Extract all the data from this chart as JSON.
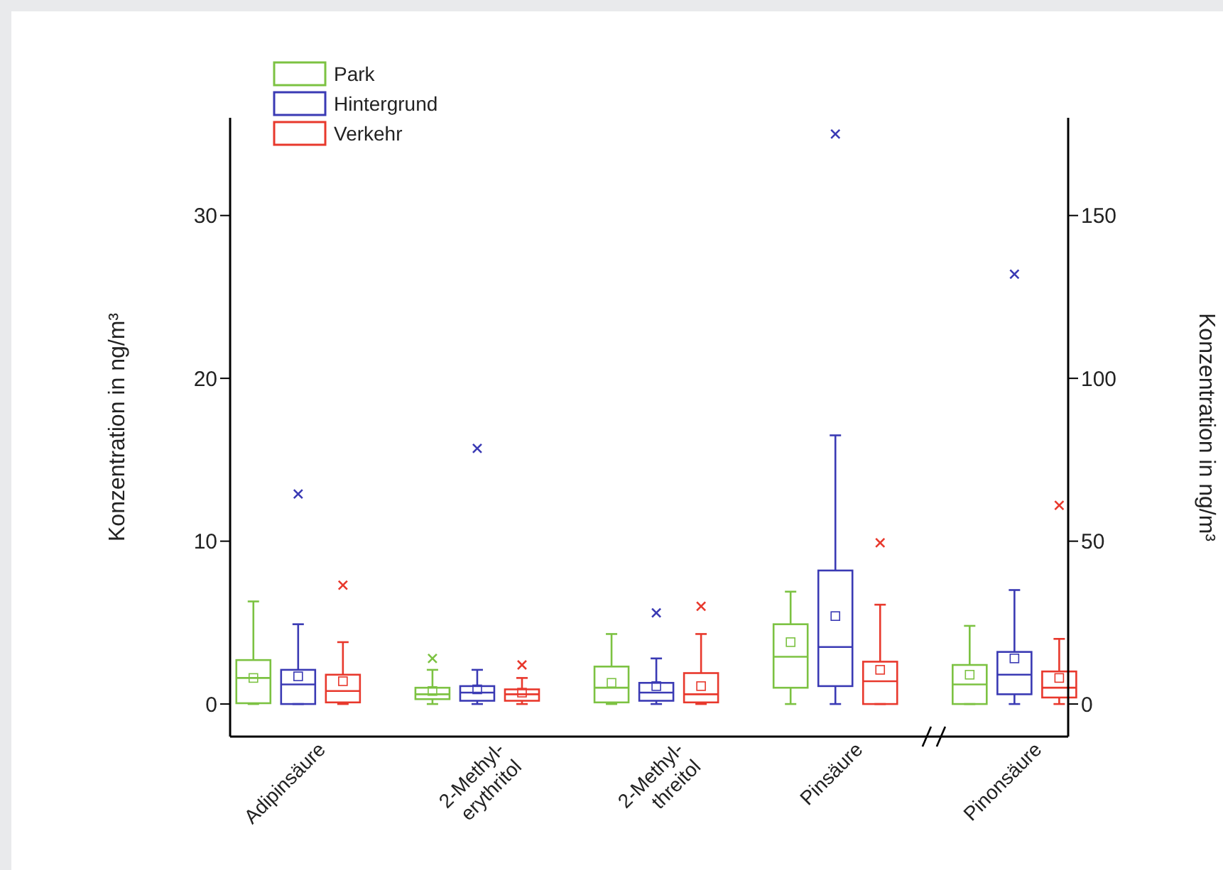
{
  "chart_data": {
    "type": "box",
    "categories": [
      "Adipinsäure",
      "2-Methyl-erythritol",
      "2-Methyl-threitol",
      "Pinsäure",
      "Pinonsäure"
    ],
    "ylabel": "Konzentration in ng/m³",
    "y2label": "Konzentration in ng/m³",
    "ylim": [
      -2,
      36
    ],
    "yticks": [
      0,
      10,
      20,
      30
    ],
    "y2lim": [
      -10,
      180
    ],
    "y2ticks": [
      0,
      50,
      100,
      150
    ],
    "legend": "top left",
    "series": [
      {
        "name": "Park",
        "color": "#7cc242",
        "boxes": [
          {
            "low": 0,
            "q1": 0.05,
            "median": 1.6,
            "q3": 2.7,
            "high": 6.3,
            "mean": 1.6
          },
          {
            "low": 0,
            "q1": 0.3,
            "median": 0.6,
            "q3": 1.0,
            "high": 2.1,
            "mean": 0.8,
            "outliers": [
              2.8
            ]
          },
          {
            "low": 0,
            "q1": 0.1,
            "median": 1.0,
            "q3": 2.3,
            "high": 4.3,
            "mean": 1.3
          },
          {
            "low": 0,
            "q1": 1.0,
            "median": 2.9,
            "q3": 4.9,
            "high": 6.9,
            "mean": 3.8
          },
          null
        ]
      },
      {
        "name": "Hintergrund",
        "color": "#3a3ab4",
        "boxes": [
          {
            "low": 0,
            "q1": 0,
            "median": 1.2,
            "q3": 2.1,
            "high": 4.9,
            "mean": 1.7,
            "outliers": [
              12.9
            ]
          },
          {
            "low": 0,
            "q1": 0.2,
            "median": 0.7,
            "q3": 1.1,
            "high": 2.1,
            "mean": 0.9,
            "outliers": [
              15.7
            ]
          },
          {
            "low": 0,
            "q1": 0.2,
            "median": 0.7,
            "q3": 1.3,
            "high": 2.8,
            "mean": 1.1,
            "outliers": [
              5.6
            ]
          },
          {
            "low": 0,
            "q1": 1.1,
            "median": 3.5,
            "q3": 8.2,
            "high": 16.5,
            "mean": 5.4,
            "outliers": [
              35.0
            ]
          },
          null
        ]
      },
      {
        "name": "Verkehr",
        "color": "#e8382c",
        "boxes": [
          {
            "low": 0,
            "q1": 0.1,
            "median": 0.8,
            "q3": 1.8,
            "high": 3.8,
            "mean": 1.4,
            "outliers": [
              7.3
            ]
          },
          {
            "low": 0,
            "q1": 0.2,
            "median": 0.6,
            "q3": 0.9,
            "high": 1.6,
            "mean": 0.7,
            "outliers": [
              2.4
            ]
          },
          {
            "low": 0,
            "q1": 0.1,
            "median": 0.6,
            "q3": 1.9,
            "high": 4.3,
            "mean": 1.1,
            "outliers": [
              6.0
            ]
          },
          {
            "low": 0,
            "q1": 0,
            "median": 1.4,
            "q3": 2.6,
            "high": 6.1,
            "mean": 2.1,
            "outliers": [
              9.9
            ]
          },
          null
        ]
      },
      {
        "color": "#7cc242",
        "axis": "y2",
        "boxes": [
          null,
          null,
          null,
          null,
          {
            "low": 0,
            "q1": 0,
            "median": 6,
            "q3": 12,
            "high": 24,
            "mean": 9
          }
        ]
      },
      {
        "color": "#3a3ab4",
        "axis": "y2",
        "boxes": [
          null,
          null,
          null,
          null,
          {
            "low": 0,
            "q1": 3,
            "median": 9,
            "q3": 16,
            "high": 35,
            "mean": 14,
            "outliers": [
              132
            ]
          }
        ]
      },
      {
        "color": "#e8382c",
        "axis": "y2",
        "boxes": [
          null,
          null,
          null,
          null,
          {
            "low": 0,
            "q1": 2,
            "median": 5,
            "q3": 10,
            "high": 20,
            "mean": 8,
            "outliers": [
              61
            ]
          }
        ]
      }
    ]
  }
}
